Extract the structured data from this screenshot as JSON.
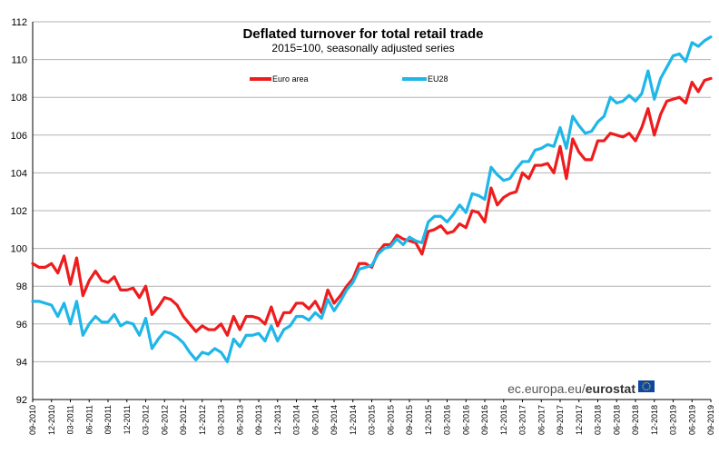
{
  "chart_data": {
    "type": "line",
    "title": "Deflated turnover for total retail trade",
    "subtitle": "2015=100, seasonally adjusted series",
    "xlabel": "",
    "ylabel": "",
    "ylim": [
      92,
      112
    ],
    "yticks": [
      "92",
      "94",
      "96",
      "98",
      "100",
      "102",
      "104",
      "106",
      "108",
      "110",
      "112"
    ],
    "grid": "horizontal",
    "legend_position": "top-center",
    "x_tick_labels": [
      "09-2010",
      "12-2010",
      "03-2011",
      "06-2011",
      "09-2011",
      "12-2011",
      "03-2012",
      "06-2012",
      "09-2012",
      "12-2012",
      "03-2013",
      "06-2013",
      "09-2013",
      "12-2013",
      "03-2014",
      "06-2014",
      "09-2014",
      "12-2014",
      "03-2015",
      "06-2015",
      "09-2015",
      "12-2015",
      "03-2016",
      "06-2016",
      "09-2016",
      "12-2016",
      "03-2017",
      "06-2017",
      "09-2017",
      "12-2017",
      "03-2018",
      "06-2018",
      "09-2018",
      "12-2018",
      "03-2019",
      "06-2019",
      "09-2019"
    ],
    "start_period": "09-2010",
    "end_period": "09-2019",
    "series": [
      {
        "name": "Euro area",
        "color": "#ee1c1c",
        "values": [
          99.2,
          99.0,
          99.0,
          99.2,
          98.7,
          99.6,
          98.1,
          99.5,
          97.5,
          98.3,
          98.8,
          98.3,
          98.2,
          98.5,
          97.8,
          97.8,
          97.9,
          97.4,
          98.0,
          96.5,
          96.9,
          97.4,
          97.3,
          97.0,
          96.4,
          96.0,
          95.6,
          95.9,
          95.7,
          95.7,
          96.0,
          95.4,
          96.4,
          95.7,
          96.4,
          96.4,
          96.3,
          96.0,
          96.9,
          95.9,
          96.6,
          96.6,
          97.1,
          97.1,
          96.8,
          97.2,
          96.6,
          97.8,
          97.1,
          97.5,
          98.0,
          98.4,
          99.2,
          99.2,
          99.0,
          99.8,
          100.2,
          100.2,
          100.7,
          100.5,
          100.4,
          100.3,
          99.7,
          100.9,
          101.0,
          101.2,
          100.8,
          100.9,
          101.3,
          101.1,
          102.0,
          101.9,
          101.4,
          103.2,
          102.3,
          102.7,
          102.9,
          103.0,
          104.0,
          103.7,
          104.4,
          104.4,
          104.5,
          104.0,
          105.4,
          103.7,
          105.8,
          105.1,
          104.7,
          104.7,
          105.7,
          105.7,
          106.1,
          106.0,
          105.9,
          106.1,
          105.7,
          106.4,
          107.4,
          106.0,
          107.1,
          107.8,
          107.9,
          108.0,
          107.7,
          108.8,
          108.3,
          108.9,
          109.0
        ]
      },
      {
        "name": "EU28",
        "color": "#1fb6e8",
        "values": [
          97.2,
          97.2,
          97.1,
          97.0,
          96.4,
          97.1,
          96.0,
          97.2,
          95.4,
          96.0,
          96.4,
          96.1,
          96.1,
          96.5,
          95.9,
          96.1,
          96.0,
          95.4,
          96.3,
          94.7,
          95.2,
          95.6,
          95.5,
          95.3,
          95.0,
          94.5,
          94.1,
          94.5,
          94.4,
          94.7,
          94.5,
          94.0,
          95.2,
          94.8,
          95.4,
          95.4,
          95.5,
          95.1,
          95.9,
          95.1,
          95.7,
          95.9,
          96.4,
          96.4,
          96.2,
          96.6,
          96.3,
          97.3,
          96.7,
          97.2,
          97.8,
          98.2,
          98.9,
          99.0,
          99.1,
          99.7,
          100.0,
          100.1,
          100.5,
          100.2,
          100.6,
          100.4,
          100.3,
          101.4,
          101.7,
          101.7,
          101.4,
          101.8,
          102.3,
          101.9,
          102.9,
          102.8,
          102.6,
          104.3,
          103.9,
          103.6,
          103.7,
          104.2,
          104.6,
          104.6,
          105.2,
          105.3,
          105.5,
          105.4,
          106.4,
          105.3,
          107.0,
          106.5,
          106.1,
          106.2,
          106.7,
          107.0,
          108.0,
          107.7,
          107.8,
          108.1,
          107.8,
          108.2,
          109.4,
          107.9,
          109.0,
          109.6,
          110.2,
          110.3,
          109.9,
          110.9,
          110.7,
          111.0,
          111.2
        ]
      }
    ]
  },
  "source": {
    "prefix": "ec.europa.eu/",
    "brand": "eurostat"
  },
  "colors": {
    "grid": "#b3b3b3",
    "axis": "#000000",
    "flag_blue": "#0e47a1",
    "flag_star": "#ffd200"
  }
}
